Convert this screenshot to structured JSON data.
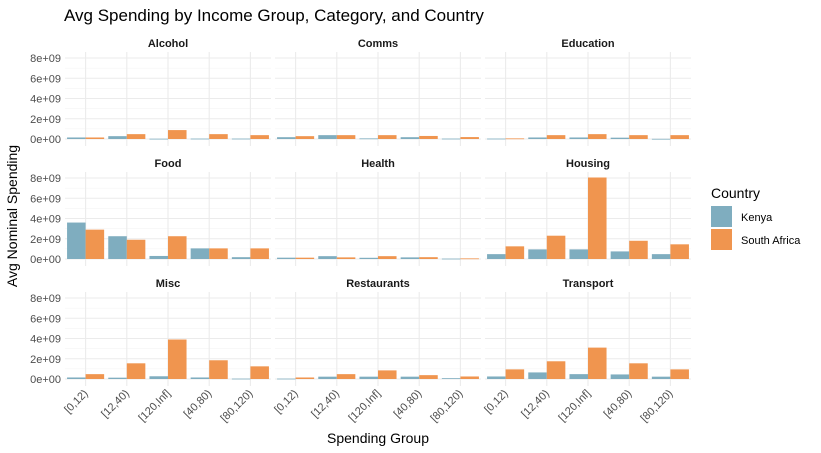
{
  "chart_data": {
    "type": "bar",
    "title": "Avg Spending by Income Group, Category, and Country",
    "xlabel": "Spending Group",
    "ylabel": "Avg Nominal Spending",
    "categories": [
      "[0,12)",
      "[12,40)",
      "[120,Inf]",
      "[40,80)",
      "[80,120)"
    ],
    "y_ticks": [
      0,
      2000000000,
      4000000000,
      6000000000,
      8000000000
    ],
    "y_tick_labels": [
      "0e+00",
      "2e+09",
      "4e+09",
      "6e+09",
      "8e+09"
    ],
    "ylim": [
      0,
      8000000000
    ],
    "grid": true,
    "legend": {
      "title": "Country",
      "position": "right",
      "entries": [
        {
          "name": "Kenya",
          "color": "#7FADBF"
        },
        {
          "name": "South Africa",
          "color": "#F0954F"
        }
      ]
    },
    "panels": [
      {
        "name": "Alcohol",
        "series": [
          {
            "name": "Kenya",
            "values": [
              150000000,
              280000000,
              30000000,
              40000000,
              40000000
            ]
          },
          {
            "name": "South Africa",
            "values": [
              150000000,
              480000000,
              880000000,
              480000000,
              380000000
            ]
          }
        ]
      },
      {
        "name": "Comms",
        "series": [
          {
            "name": "Kenya",
            "values": [
              180000000,
              380000000,
              60000000,
              180000000,
              40000000
            ]
          },
          {
            "name": "South Africa",
            "values": [
              280000000,
              380000000,
              380000000,
              300000000,
              190000000
            ]
          }
        ]
      },
      {
        "name": "Education",
        "series": [
          {
            "name": "Kenya",
            "values": [
              40000000,
              150000000,
              150000000,
              130000000,
              20000000
            ]
          },
          {
            "name": "South Africa",
            "values": [
              60000000,
              380000000,
              480000000,
              380000000,
              380000000
            ]
          }
        ]
      },
      {
        "name": "Food",
        "series": [
          {
            "name": "Kenya",
            "values": [
              3600000000,
              2250000000,
              300000000,
              1050000000,
              180000000
            ]
          },
          {
            "name": "South Africa",
            "values": [
              2900000000,
              1900000000,
              2250000000,
              1050000000,
              1050000000
            ]
          }
        ]
      },
      {
        "name": "Health",
        "series": [
          {
            "name": "Kenya",
            "values": [
              130000000,
              280000000,
              120000000,
              160000000,
              40000000
            ]
          },
          {
            "name": "South Africa",
            "values": [
              130000000,
              160000000,
              280000000,
              180000000,
              60000000
            ]
          }
        ]
      },
      {
        "name": "Housing",
        "series": [
          {
            "name": "Kenya",
            "values": [
              480000000,
              950000000,
              950000000,
              750000000,
              480000000
            ]
          },
          {
            "name": "South Africa",
            "values": [
              1250000000,
              2300000000,
              8050000000,
              1800000000,
              1450000000
            ]
          }
        ]
      },
      {
        "name": "Misc",
        "series": [
          {
            "name": "Kenya",
            "values": [
              150000000,
              130000000,
              270000000,
              150000000,
              40000000
            ]
          },
          {
            "name": "South Africa",
            "values": [
              480000000,
              1550000000,
              3900000000,
              1850000000,
              1250000000
            ]
          }
        ]
      },
      {
        "name": "Restaurants",
        "series": [
          {
            "name": "Kenya",
            "values": [
              40000000,
              230000000,
              230000000,
              230000000,
              80000000
            ]
          },
          {
            "name": "South Africa",
            "values": [
              150000000,
              480000000,
              850000000,
              380000000,
              250000000
            ]
          }
        ]
      },
      {
        "name": "Transport",
        "series": [
          {
            "name": "Kenya",
            "values": [
              250000000,
              650000000,
              480000000,
              450000000,
              230000000
            ]
          },
          {
            "name": "South Africa",
            "values": [
              950000000,
              1750000000,
              3100000000,
              1550000000,
              950000000
            ]
          }
        ]
      }
    ]
  }
}
